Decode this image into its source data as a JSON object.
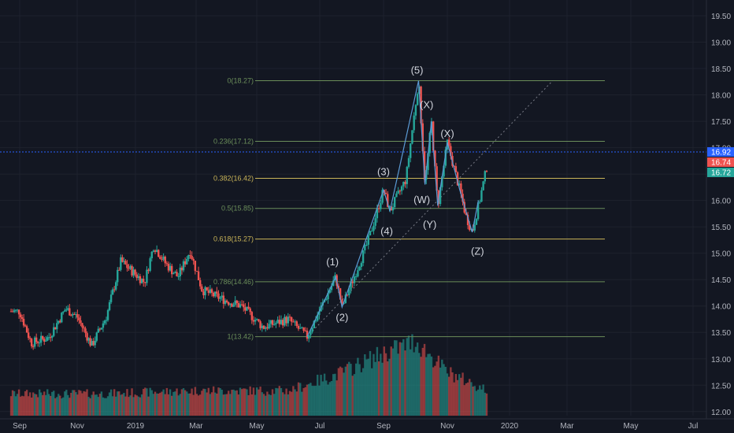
{
  "chart_data": {
    "type": "candlestick",
    "title": "",
    "xlabel": "",
    "ylabel": "",
    "ylim": [
      11.9,
      19.65
    ],
    "grid": true,
    "x_ticks": [
      "Sep",
      "Nov",
      "2019",
      "Mar",
      "May",
      "Jul",
      "Sep",
      "Nov",
      "2020",
      "Mar",
      "May",
      "Jul"
    ],
    "y_ticks": [
      "19.50",
      "19.00",
      "18.50",
      "18.00",
      "17.50",
      "17.00",
      "16.50",
      "16.00",
      "15.50",
      "15.00",
      "14.50",
      "14.00",
      "13.50",
      "13.00",
      "12.50",
      "12.00"
    ],
    "price_badges": [
      {
        "label": "16.92",
        "value": 16.92,
        "color": "#2962ff"
      },
      {
        "label": "16.74",
        "value": 16.74,
        "color": "#ef5350"
      },
      {
        "label": "16.72",
        "value": 16.72,
        "color": "#26a69a"
      }
    ],
    "current_price_line": 16.92,
    "fib_levels": [
      {
        "label": "0(18.27)",
        "value": 18.27,
        "color": "#6b8e5a"
      },
      {
        "label": "0.236(17.12)",
        "value": 17.12,
        "color": "#6b8e5a"
      },
      {
        "label": "0.382(16.42)",
        "value": 16.42,
        "color": "#c9b458"
      },
      {
        "label": "0.5(15.85)",
        "value": 15.85,
        "color": "#6b8e5a"
      },
      {
        "label": "0.618(15.27)",
        "value": 15.27,
        "color": "#c9b458"
      },
      {
        "label": "0.786(14.46)",
        "value": 14.46,
        "color": "#6b8e5a"
      },
      {
        "label": "1(13.42)",
        "value": 13.42,
        "color": "#6b8e5a"
      }
    ],
    "wave_labels": [
      {
        "label": "(1)",
        "month": 10.4,
        "value": 14.77
      },
      {
        "label": "(2)",
        "month": 10.7,
        "value": 13.72
      },
      {
        "label": "(3)",
        "month": 12.0,
        "value": 16.48
      },
      {
        "label": "(4)",
        "month": 12.1,
        "value": 15.35
      },
      {
        "label": "(5)",
        "month": 13.05,
        "value": 18.4
      },
      {
        "label": "(X)",
        "month": 13.35,
        "value": 17.75
      },
      {
        "label": "(W)",
        "month": 13.2,
        "value": 15.95
      },
      {
        "label": "(Y)",
        "month": 13.45,
        "value": 15.48
      },
      {
        "label": "(X)",
        "month": 14.0,
        "value": 17.2
      },
      {
        "label": "(Z)",
        "month": 14.97,
        "value": 14.97
      }
    ],
    "wave_path": [
      {
        "month": 9.6,
        "value": 13.42
      },
      {
        "month": 10.5,
        "value": 14.55
      },
      {
        "month": 10.7,
        "value": 13.98
      },
      {
        "month": 12.0,
        "value": 16.2
      },
      {
        "month": 12.2,
        "value": 15.8
      },
      {
        "month": 13.1,
        "value": 18.27
      },
      {
        "month": 13.3,
        "value": 16.3
      },
      {
        "month": 13.5,
        "value": 17.5
      },
      {
        "month": 13.7,
        "value": 15.9
      },
      {
        "month": 14.0,
        "value": 17.1
      },
      {
        "month": 14.4,
        "value": 16.2
      },
      {
        "month": 14.8,
        "value": 15.4
      },
      {
        "month": 15.0,
        "value": 16.0
      }
    ],
    "trend_line": [
      {
        "month": 9.6,
        "value": 13.42
      },
      {
        "month": 17.5,
        "value": 18.27
      }
    ],
    "series": [
      {
        "price_path": [
          {
            "month": 0.0,
            "value": 13.9
          },
          {
            "month": 0.4,
            "value": 13.3
          },
          {
            "month": 1.0,
            "value": 13.4
          },
          {
            "month": 1.6,
            "value": 13.95
          },
          {
            "month": 2.0,
            "value": 13.8
          },
          {
            "month": 2.5,
            "value": 13.25
          },
          {
            "month": 3.0,
            "value": 13.8
          },
          {
            "month": 3.5,
            "value": 14.85
          },
          {
            "month": 4.3,
            "value": 14.45
          },
          {
            "month": 4.6,
            "value": 15.15
          },
          {
            "month": 5.0,
            "value": 14.8
          },
          {
            "month": 5.4,
            "value": 14.55
          },
          {
            "month": 5.8,
            "value": 15.05
          },
          {
            "month": 6.2,
            "value": 14.3
          },
          {
            "month": 7.0,
            "value": 14.1
          },
          {
            "month": 7.5,
            "value": 14.0
          },
          {
            "month": 8.2,
            "value": 13.6
          },
          {
            "month": 9.0,
            "value": 13.75
          },
          {
            "month": 9.6,
            "value": 13.42
          },
          {
            "month": 10.5,
            "value": 14.55
          },
          {
            "month": 10.7,
            "value": 13.98
          },
          {
            "month": 11.5,
            "value": 15.2
          },
          {
            "month": 12.0,
            "value": 16.2
          },
          {
            "month": 12.2,
            "value": 15.8
          },
          {
            "month": 12.7,
            "value": 16.4
          },
          {
            "month": 13.1,
            "value": 18.27
          },
          {
            "month": 13.3,
            "value": 16.3
          },
          {
            "month": 13.5,
            "value": 17.5
          },
          {
            "month": 13.7,
            "value": 15.9
          },
          {
            "month": 14.0,
            "value": 17.1
          },
          {
            "month": 14.4,
            "value": 16.2
          },
          {
            "month": 14.6,
            "value": 15.7
          },
          {
            "month": 14.8,
            "value": 15.4
          },
          {
            "month": 15.0,
            "value": 15.9
          },
          {
            "month": 15.3,
            "value": 16.72
          }
        ],
        "volume_path": [
          {
            "month": 0.0,
            "value": 12.25
          },
          {
            "month": 3.0,
            "value": 12.25
          },
          {
            "month": 6.0,
            "value": 12.3
          },
          {
            "month": 9.0,
            "value": 12.3
          },
          {
            "month": 10.5,
            "value": 12.55
          },
          {
            "month": 12.0,
            "value": 12.9
          },
          {
            "month": 13.0,
            "value": 13.1
          },
          {
            "month": 14.0,
            "value": 12.6
          },
          {
            "month": 15.3,
            "value": 12.3
          }
        ]
      }
    ]
  }
}
